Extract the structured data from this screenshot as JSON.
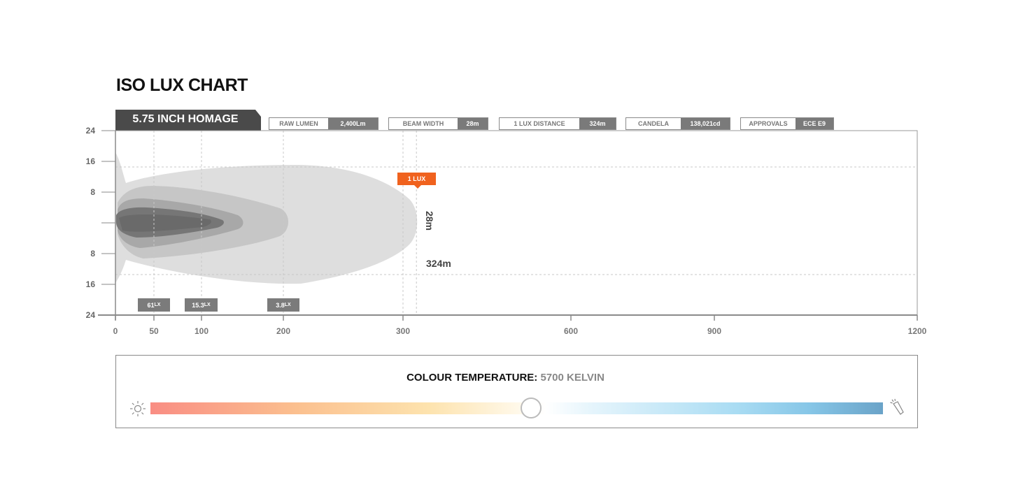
{
  "title": "ISO LUX CHART",
  "model": "5.75 INCH HOMAGE",
  "specs": [
    {
      "label": "RAW LUMEN",
      "value": "2,400Lm"
    },
    {
      "label": "BEAM WIDTH",
      "value": "28m"
    },
    {
      "label": "1 LUX DISTANCE",
      "value": "324m"
    },
    {
      "label": "CANDELA",
      "value": "138,021cd"
    },
    {
      "label": "APPROVALS",
      "value": "ECE E9"
    }
  ],
  "chart_data": {
    "type": "area",
    "title": "",
    "xlabel": "",
    "ylabel": "",
    "x_ticks": [
      "0",
      "50",
      "100",
      "200",
      "300",
      "600",
      "900",
      "1200"
    ],
    "y_ticks": [
      "24",
      "16",
      "8",
      "",
      "8",
      "16",
      "24"
    ],
    "xlim": [
      0,
      1200
    ],
    "ylim": [
      -24,
      24
    ],
    "x_scale": "non-linear (compressed beyond 300)",
    "contours": [
      {
        "lux": "1 LUX",
        "reach_m": 324,
        "width_m": 28
      },
      {
        "lux": "3.8",
        "unit": "LX",
        "marker_x": 200
      },
      {
        "lux": "15.3",
        "unit": "LX",
        "marker_x": 100
      },
      {
        "lux": "61",
        "unit": "LX",
        "marker_x": 50
      }
    ],
    "annotations": {
      "badge": "1 LUX",
      "width": "28m",
      "distance": "324m"
    },
    "colors": {
      "1lux": "#dedede",
      "3.8lx": "#c4c4c4",
      "15.3lx": "#a6a6a6",
      "61lx": "#6e6e6e",
      "badge": "#f0621e"
    }
  },
  "colour_temperature": {
    "label": "COLOUR TEMPERATURE:",
    "value": "5700 KELVIN",
    "position": 0.52,
    "left_icon": "sun-icon",
    "right_icon": "flashlight-icon"
  }
}
